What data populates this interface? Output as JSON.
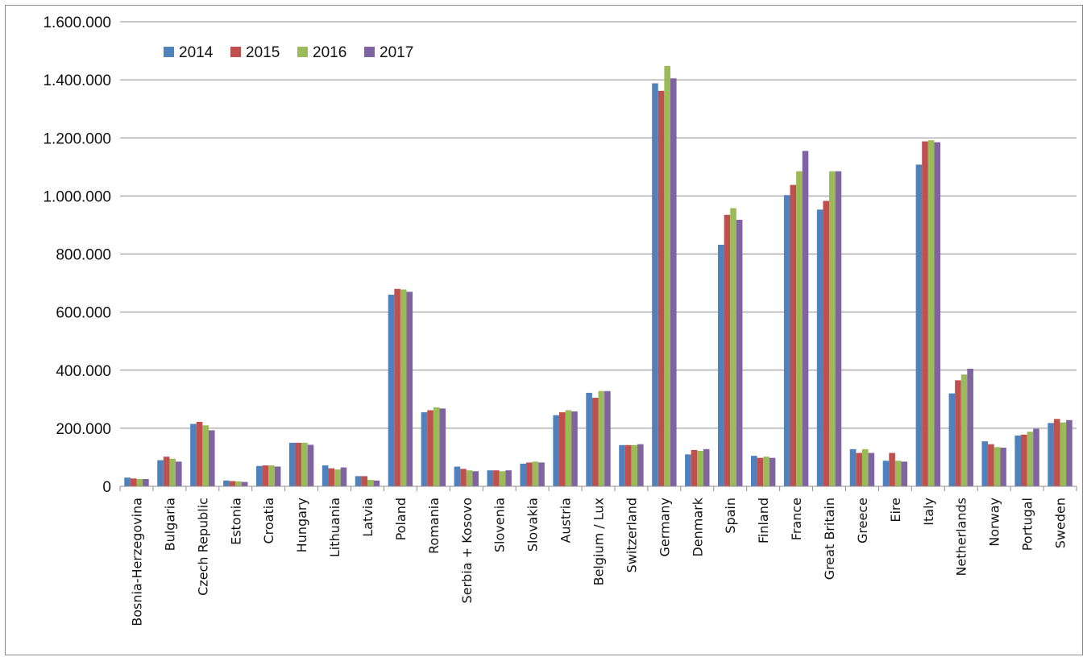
{
  "chart_data": {
    "type": "bar",
    "title": "",
    "xlabel": "",
    "ylabel": "",
    "ylim": [
      0,
      1600000
    ],
    "yticks": [
      0,
      200000,
      400000,
      600000,
      800000,
      1000000,
      1200000,
      1400000,
      1600000
    ],
    "ytick_labels": [
      "0",
      "200.000",
      "400.000",
      "600.000",
      "800.000",
      "1.000.000",
      "1.200.000",
      "1.400.000",
      "1.600.000"
    ],
    "grid": true,
    "legend_position": "top-left",
    "categories": [
      "Bosnia-Herzegovina",
      "Bulgaria",
      "Czech Republic",
      "Estonia",
      "Croatia",
      "Hungary",
      "Lithuania",
      "Latvia",
      "Poland",
      "Romania",
      "Serbia + Kosovo",
      "Slovenia",
      "Slovakia",
      "Austria",
      "Belgium / Lux",
      "Switzerland",
      "Germany",
      "Denmark",
      "Spain",
      "Finland",
      "France",
      "Great Britain",
      "Greece",
      "Eire",
      "Italy",
      "Netherlands",
      "Norway",
      "Portugal",
      "Sweden"
    ],
    "series": [
      {
        "name": "2014",
        "color": "#4f81bd",
        "values": [
          30000,
          90000,
          215000,
          20000,
          70000,
          150000,
          72000,
          35000,
          660000,
          255000,
          68000,
          55000,
          78000,
          245000,
          322000,
          142000,
          1388000,
          110000,
          832000,
          105000,
          1003000,
          953000,
          128000,
          88000,
          1108000,
          320000,
          155000,
          175000,
          218000
        ]
      },
      {
        "name": "2015",
        "color": "#c0504d",
        "values": [
          27000,
          102000,
          222000,
          18000,
          72000,
          150000,
          62000,
          35000,
          680000,
          262000,
          60000,
          55000,
          82000,
          255000,
          305000,
          142000,
          1362000,
          125000,
          935000,
          98000,
          1038000,
          983000,
          115000,
          115000,
          1188000,
          365000,
          145000,
          178000,
          232000
        ]
      },
      {
        "name": "2016",
        "color": "#9bbb59",
        "values": [
          25000,
          95000,
          210000,
          17000,
          72000,
          150000,
          58000,
          22000,
          678000,
          272000,
          55000,
          52000,
          85000,
          262000,
          328000,
          142000,
          1448000,
          122000,
          958000,
          102000,
          1085000,
          1085000,
          128000,
          88000,
          1192000,
          385000,
          135000,
          188000,
          220000
        ]
      },
      {
        "name": "2017",
        "color": "#8064a2",
        "values": [
          25000,
          85000,
          193000,
          15000,
          68000,
          143000,
          65000,
          20000,
          670000,
          268000,
          52000,
          55000,
          82000,
          258000,
          328000,
          145000,
          1405000,
          128000,
          918000,
          98000,
          1155000,
          1085000,
          115000,
          85000,
          1185000,
          405000,
          133000,
          198000,
          228000
        ]
      }
    ]
  }
}
